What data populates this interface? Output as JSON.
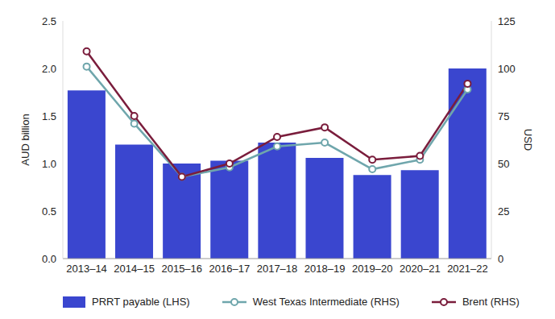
{
  "chart_data": {
    "type": "bar",
    "categories": [
      "2013–14",
      "2014–15",
      "2015–16",
      "2016–17",
      "2017–18",
      "2018–19",
      "2019–20",
      "2020–21",
      "2021–22"
    ],
    "series": [
      {
        "name": "PRRT payable (LHS)",
        "type": "bar",
        "color": "#3a46cf",
        "values": [
          1.77,
          1.2,
          1.0,
          1.03,
          1.22,
          1.06,
          0.88,
          0.93,
          2.0
        ]
      },
      {
        "name": "West Texas Intermediate (RHS)",
        "type": "line",
        "axis": "y2",
        "color": "#6fa6ac",
        "marker": "circle",
        "values": [
          101,
          71,
          43,
          48,
          59,
          61,
          47,
          52,
          89
        ]
      },
      {
        "name": "Brent (RHS)",
        "type": "line",
        "axis": "y2",
        "color": "#7a1d3c",
        "marker": "circle",
        "values": [
          109,
          75,
          43,
          50,
          64,
          69,
          52,
          54,
          92
        ]
      }
    ],
    "y_label": "AUD billion",
    "y2_label": "USD",
    "ylim": [
      0,
      2.5
    ],
    "yticks": [
      {
        "value": 0,
        "label": "0.0"
      },
      {
        "value": 0.5,
        "label": "0.5"
      },
      {
        "value": 1,
        "label": "1.0"
      },
      {
        "value": 1.5,
        "label": "1.5"
      },
      {
        "value": 2,
        "label": "2.0"
      },
      {
        "value": 2.5,
        "label": "2.5"
      }
    ],
    "y2lim": [
      0,
      125
    ],
    "y2ticks": [
      0,
      25,
      50,
      75,
      100,
      125
    ],
    "grid": false,
    "legend": "bottom"
  }
}
